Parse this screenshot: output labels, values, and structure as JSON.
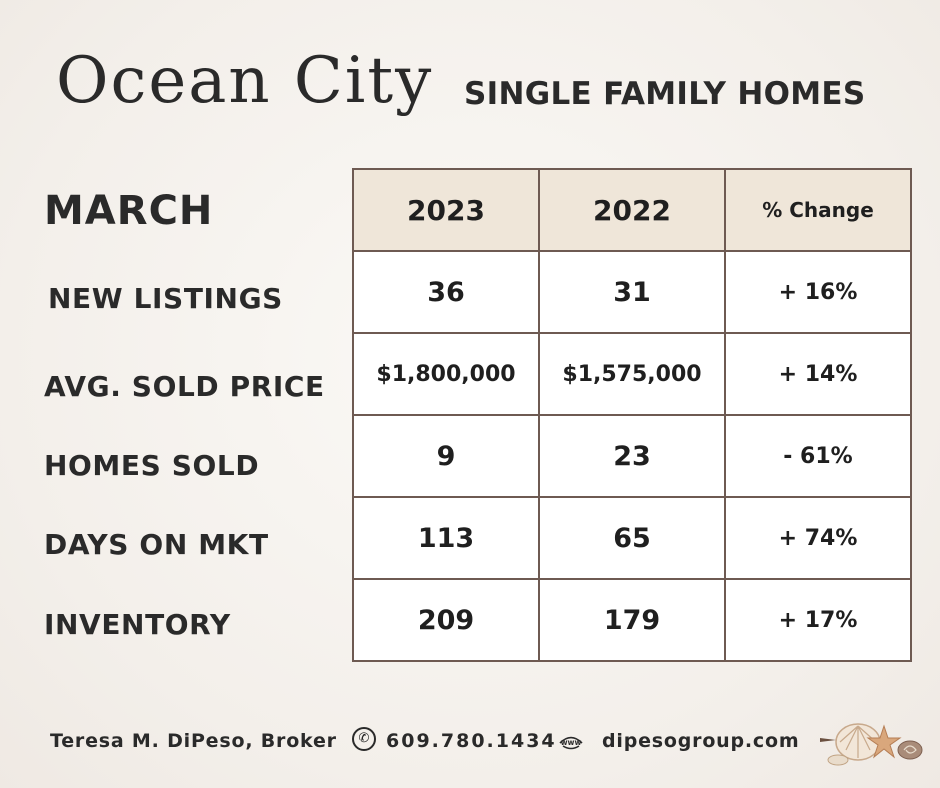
{
  "header": {
    "title": "Ocean City",
    "subtitle": "SINGLE FAMILY HOMES"
  },
  "month": "MARCH",
  "table": {
    "columns": [
      "2023",
      "2022",
      "% Change"
    ],
    "rows": [
      {
        "label": "NEW LISTINGS",
        "y2023": "36",
        "y2022": "31",
        "change": "+ 16%"
      },
      {
        "label": "AVG. SOLD PRICE",
        "y2023": "$1,800,000",
        "y2022": "$1,575,000",
        "change": "+ 14%"
      },
      {
        "label": "HOMES SOLD",
        "y2023": "9",
        "y2022": "23",
        "change": "- 61%"
      },
      {
        "label": "DAYS ON MKT",
        "y2023": "113",
        "y2022": "65",
        "change": "+ 74%"
      },
      {
        "label": "INVENTORY",
        "y2023": "209",
        "y2022": "179",
        "change": "+ 17%"
      }
    ]
  },
  "footer": {
    "broker": "Teresa M. DiPeso, Broker",
    "phone": "609.780.1434",
    "website_icon_text": "www",
    "website": "dipesogroup.com",
    "phone_icon": "phone-icon",
    "web_icon": "globe-icon"
  },
  "colors": {
    "border": "#6e5a52",
    "header_bg": "#efe6d9",
    "text": "#2a2a2a"
  }
}
